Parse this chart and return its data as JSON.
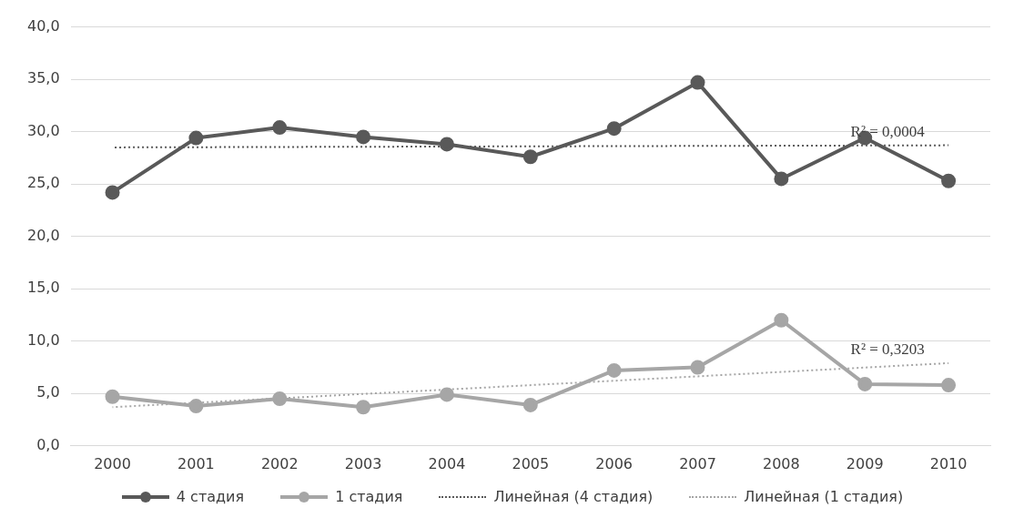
{
  "chart_data": {
    "type": "line",
    "categories": [
      "2000",
      "2001",
      "2002",
      "2003",
      "2004",
      "2005",
      "2006",
      "2007",
      "2008",
      "2009",
      "2010"
    ],
    "series": [
      {
        "name": "4 стадия",
        "color": "#595959",
        "values": [
          24.2,
          29.4,
          30.4,
          29.5,
          28.8,
          27.6,
          30.3,
          34.7,
          25.5,
          29.4,
          25.3
        ],
        "marker": "circle",
        "line_style": "solid"
      },
      {
        "name": "1 стадия",
        "color": "#a6a6a6",
        "values": [
          4.7,
          3.8,
          4.5,
          3.7,
          4.9,
          3.9,
          7.2,
          7.5,
          12.0,
          5.9,
          5.8
        ],
        "marker": "circle",
        "line_style": "solid"
      },
      {
        "name": "Линейная (4 стадия)",
        "color": "#595959",
        "values": [
          28.5,
          null,
          null,
          null,
          null,
          null,
          null,
          null,
          null,
          null,
          28.7
        ],
        "marker": "none",
        "line_style": "dotted"
      },
      {
        "name": "Линейная (1 стадия)",
        "color": "#a6a6a6",
        "values": [
          3.7,
          null,
          null,
          null,
          null,
          null,
          null,
          null,
          null,
          null,
          7.9
        ],
        "marker": "none",
        "line_style": "dotted"
      }
    ],
    "ylim": [
      0,
      40
    ],
    "yticks": [
      {
        "value": 0,
        "label": "0,0"
      },
      {
        "value": 5,
        "label": "5,0"
      },
      {
        "value": 10,
        "label": "10,0"
      },
      {
        "value": 15,
        "label": "15,0"
      },
      {
        "value": 20,
        "label": "20,0"
      },
      {
        "value": 25,
        "label": "25,0"
      },
      {
        "value": 30,
        "label": "30,0"
      },
      {
        "value": 35,
        "label": "35,0"
      },
      {
        "value": 40,
        "label": "40,0"
      }
    ],
    "grid": "y",
    "legend": "bottom",
    "annotations": [
      {
        "text": "R² = 0,0004",
        "x": "2009",
        "y": 28.7
      },
      {
        "text": "R² = 0,3203",
        "x": "2009",
        "y": 7.9
      }
    ]
  }
}
